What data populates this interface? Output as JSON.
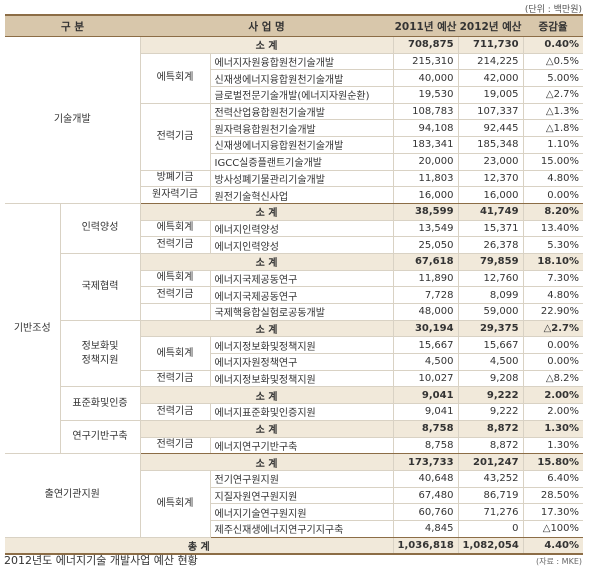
{
  "unit_note": "(단위 : 백만원)",
  "header": [
    "구 분",
    "사 업 명",
    "2011년 예산",
    "2012년 예산",
    "증감율"
  ],
  "sections": [
    {
      "label": [
        "기술개발"
      ],
      "subtotal": [
        "소 계",
        "708,875",
        "711,730",
        "0.40%"
      ],
      "accounts": [
        {
          "label": [
            "에특회계"
          ],
          "items": [
            [
              "에너지자원융합원천기술개발",
              "215,310",
              "214,225",
              "△0.5%"
            ],
            [
              "신재생에너지융합원천기술개발",
              "40,000",
              "42,000",
              "5.00%"
            ],
            [
              "글로벌전문기술개발(에너지자원순환)",
              "19,530",
              "19,005",
              "△2.7%"
            ]
          ]
        },
        {
          "label": [
            "전력기금"
          ],
          "items": [
            [
              "전력산업융합원천기술개발",
              "108,783",
              "107,337",
              "△1.3%"
            ],
            [
              "원자력융합원천기술개발",
              "94,108",
              "92,445",
              "△1.8%"
            ],
            [
              "신재생에너지융합원천기술개발",
              "183,341",
              "185,348",
              "1.10%"
            ],
            [
              "IGCC실증플랜트기술개발",
              "20,000",
              "23,000",
              "15.00%"
            ]
          ]
        },
        {
          "label": [
            "방폐기금"
          ],
          "items": [
            [
              "방사성폐기물관리기술개발",
              "11,803",
              "12,370",
              "4.80%"
            ]
          ]
        },
        {
          "label": [
            "원자력기금"
          ],
          "items": [
            [
              "원전기술혁신사업",
              "16,000",
              "16,000",
              "0.00%"
            ]
          ]
        }
      ]
    },
    {
      "label": [
        "기반조성"
      ],
      "groups": [
        {
          "label": [
            "인력양성"
          ],
          "subtotal": [
            "소 계",
            "38,599",
            "41,749",
            "8.20%"
          ],
          "accounts": [
            {
              "label": [
                "에특회계"
              ],
              "items": [
                [
                  "에너지인력양성",
                  "13,549",
                  "15,371",
                  "13.40%"
                ]
              ]
            },
            {
              "label": [
                "전력기금"
              ],
              "items": [
                [
                  "에너지인력양성",
                  "25,050",
                  "26,378",
                  "5.30%"
                ]
              ]
            }
          ]
        },
        {
          "label": [
            "국제협력"
          ],
          "subtotal": [
            "소 계",
            "67,618",
            "79,859",
            "18.10%"
          ],
          "accounts": [
            {
              "label": [
                "에특회계"
              ],
              "items": [
                [
                  "에너지국제공동연구",
                  "11,890",
                  "12,760",
                  "7.30%"
                ]
              ]
            },
            {
              "label": [
                "전력기금"
              ],
              "items": [
                [
                  "에너지국제공동연구",
                  "7,728",
                  "8,099",
                  "4.80%"
                ]
              ]
            },
            {
              "items": [
                [
                  "국제핵융합실험로공동개발",
                  "48,000",
                  "59,000",
                  "22.90%"
                ]
              ]
            }
          ]
        },
        {
          "label": [
            "정보화및",
            "정책지원"
          ],
          "subtotal": [
            "소 계",
            "30,194",
            "29,375",
            "△2.7%"
          ],
          "accounts": [
            {
              "label": [
                "에특회계"
              ],
              "items": [
                [
                  "에너지정보화및정책지원",
                  "15,667",
                  "15,667",
                  "0.00%"
                ],
                [
                  "에너지자원정책연구",
                  "4,500",
                  "4,500",
                  "0.00%"
                ]
              ]
            },
            {
              "label": [
                "전력기금"
              ],
              "items": [
                [
                  "에너지정보화및정책지원",
                  "10,027",
                  "9,208",
                  "△8.2%"
                ]
              ]
            }
          ]
        },
        {
          "label": [
            "표준화및인증"
          ],
          "subtotal": [
            "소 계",
            "9,041",
            "9,222",
            "2.00%"
          ],
          "accounts": [
            {
              "label": [
                "전력기금"
              ],
              "items": [
                [
                  "에너지표준화및인증지원",
                  "9,041",
                  "9,222",
                  "2.00%"
                ]
              ]
            }
          ]
        },
        {
          "label": [
            "연구기반구축"
          ],
          "subtotal": [
            "소 계",
            "8,758",
            "8,872",
            "1.30%"
          ],
          "accounts": [
            {
              "label": [
                "전력기금"
              ],
              "items": [
                [
                  "에너지연구기반구축",
                  "8,758",
                  "8,872",
                  "1.30%"
                ]
              ]
            }
          ]
        }
      ]
    },
    {
      "label": [
        "출연기관지원"
      ],
      "subtotal": [
        "소 계",
        "173,733",
        "201,247",
        "15.80%"
      ],
      "accounts": [
        {
          "label": [
            "에특회계"
          ],
          "items": [
            [
              "전기연구원지원",
              "40,648",
              "43,252",
              "6.40%"
            ],
            [
              "지질자원연구원지원",
              "67,480",
              "86,719",
              "28.50%"
            ],
            [
              "에너지기술연구원지원",
              "60,760",
              "71,276",
              "17.30%"
            ],
            [
              "제주신재생에너지연구기지구축",
              "4,845",
              "0",
              "△100%"
            ]
          ]
        }
      ]
    }
  ],
  "total": [
    "총 계",
    "1,036,818",
    "1,082,054",
    "4.40%"
  ],
  "caption": "2012년도 에너지기술 개발사업 예산 현황",
  "source": "(자료 : MKE)"
}
